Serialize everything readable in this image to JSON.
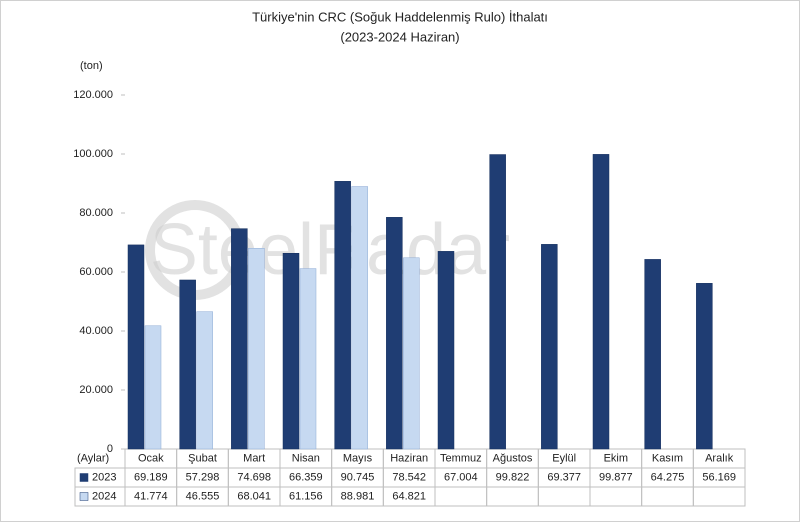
{
  "chart_data": {
    "type": "bar",
    "title": "Türkiye'nin CRC (Soğuk Haddelenmiş Rulo) İthalatı",
    "subtitle": "(2023-2024 Haziran)",
    "y_unit": "(ton)",
    "x_label": "(Aylar)",
    "watermark": "SteelRadar",
    "categories": [
      "Ocak",
      "Şubat",
      "Mart",
      "Nisan",
      "Mayıs",
      "Haziran",
      "Temmuz",
      "Ağustos",
      "Eylül",
      "Ekim",
      "Kasım",
      "Aralık"
    ],
    "series": [
      {
        "name": "2023",
        "color": "#1f3d73",
        "values": [
          69189,
          57298,
          74698,
          66359,
          90745,
          78542,
          67004,
          99822,
          69377,
          99877,
          64275,
          56169
        ],
        "value_labels": [
          "69.189",
          "57.298",
          "74.698",
          "66.359",
          "90.745",
          "78.542",
          "67.004",
          "99.822",
          "69.377",
          "99.877",
          "64.275",
          "56.169"
        ]
      },
      {
        "name": "2024",
        "color": "#c6d9f1",
        "values": [
          41774,
          46555,
          68041,
          61156,
          88981,
          64821,
          null,
          null,
          null,
          null,
          null,
          null
        ],
        "value_labels": [
          "41.774",
          "46.555",
          "68.041",
          "61.156",
          "88.981",
          "64.821",
          null,
          null,
          null,
          null,
          null,
          null
        ]
      }
    ],
    "ylim": [
      0,
      120000
    ],
    "yticks": [
      0,
      {
        "value": 20000,
        "label": "20.000"
      },
      {
        "value": 40000,
        "label": "40.000"
      },
      {
        "value": 60000,
        "label": "60.000"
      },
      {
        "value": 80000,
        "label": "80.000"
      },
      {
        "value": 100000,
        "label": "100.000"
      },
      {
        "value": 120000,
        "label": "120.000"
      }
    ]
  }
}
